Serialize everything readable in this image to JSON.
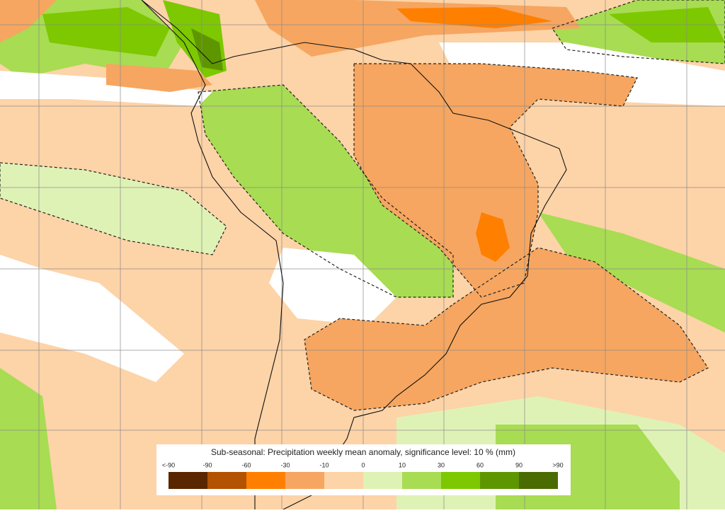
{
  "legend": {
    "title": "Sub-seasonal: Precipitation weekly mean anomaly, significance level: 10 % (mm)",
    "labels": [
      "<-90",
      "-90",
      "-60",
      "-30",
      "-10",
      "0",
      "10",
      "30",
      "60",
      "90",
      ">90"
    ],
    "colors": [
      "#5a2600",
      "#b35200",
      "#ff7f00",
      "#f6a660",
      "#fdd3a8",
      "#dff2b6",
      "#a8dc52",
      "#7dc800",
      "#5e9600",
      "#4a6b00"
    ]
  }
}
